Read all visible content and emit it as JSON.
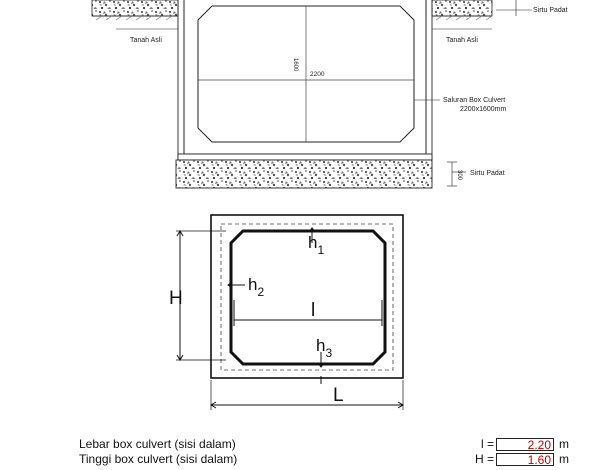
{
  "cross_section": {
    "labels": {
      "sirtu_top": "Sirtu Padat",
      "tanah_left": "Tanah Asli",
      "tanah_right": "Tanah Asli",
      "height_dim": "1600",
      "width_dim": "2200",
      "culvert_name": "Saluran Box Culvert",
      "culvert_size": "2200x1600mm",
      "base_dim": "300",
      "sirtu_bottom": "Sirtu Padat"
    }
  },
  "schematic": {
    "labels": {
      "h1": "h",
      "h1_sub": "1",
      "h2": "h",
      "h2_sub": "2",
      "h3": "h",
      "h3_sub": "3",
      "l_inner": "l",
      "H_outer": "H",
      "L_outer": "L"
    }
  },
  "parameters": [
    {
      "label": "Lebar box culvert (sisi dalam)",
      "symbol": "l =",
      "value": "2.20",
      "unit": "m"
    },
    {
      "label": "Tinggi box culvert (sisi dalam)",
      "symbol": "H =",
      "value": "1.60",
      "unit": "m"
    }
  ]
}
